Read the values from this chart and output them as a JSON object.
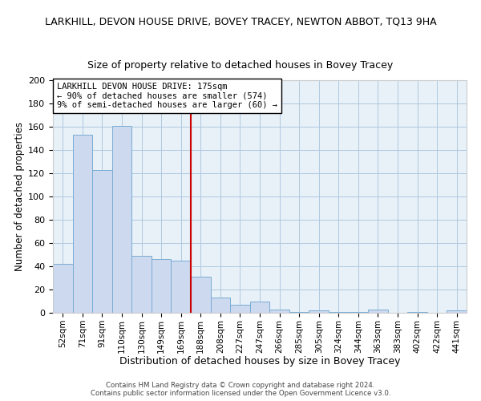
{
  "title": "LARKHILL, DEVON HOUSE DRIVE, BOVEY TRACEY, NEWTON ABBOT, TQ13 9HA",
  "subtitle": "Size of property relative to detached houses in Bovey Tracey",
  "xlabel": "Distribution of detached houses by size in Bovey Tracey",
  "ylabel": "Number of detached properties",
  "bar_labels": [
    "52sqm",
    "71sqm",
    "91sqm",
    "110sqm",
    "130sqm",
    "149sqm",
    "169sqm",
    "188sqm",
    "208sqm",
    "227sqm",
    "247sqm",
    "266sqm",
    "285sqm",
    "305sqm",
    "324sqm",
    "344sqm",
    "363sqm",
    "383sqm",
    "402sqm",
    "422sqm",
    "441sqm"
  ],
  "bar_values": [
    42,
    153,
    123,
    161,
    49,
    46,
    45,
    31,
    13,
    7,
    10,
    3,
    1,
    2,
    1,
    1,
    3,
    0,
    1,
    0,
    2
  ],
  "bar_color": "#ccd9ee",
  "bar_edge_color": "#7aadd4",
  "vline_x_idx": 6.5,
  "vline_color": "#cc0000",
  "annotation_title": "LARKHILL DEVON HOUSE DRIVE: 175sqm",
  "annotation_line2": "← 90% of detached houses are smaller (574)",
  "annotation_line3": "9% of semi-detached houses are larger (60) →",
  "ylim": [
    0,
    200
  ],
  "yticks": [
    0,
    20,
    40,
    60,
    80,
    100,
    120,
    140,
    160,
    180,
    200
  ],
  "ax_facecolor": "#e8f0f8",
  "background_color": "#ffffff",
  "grid_color": "#afc9e0",
  "footer_line1": "Contains HM Land Registry data © Crown copyright and database right 2024.",
  "footer_line2": "Contains public sector information licensed under the Open Government Licence v3.0."
}
